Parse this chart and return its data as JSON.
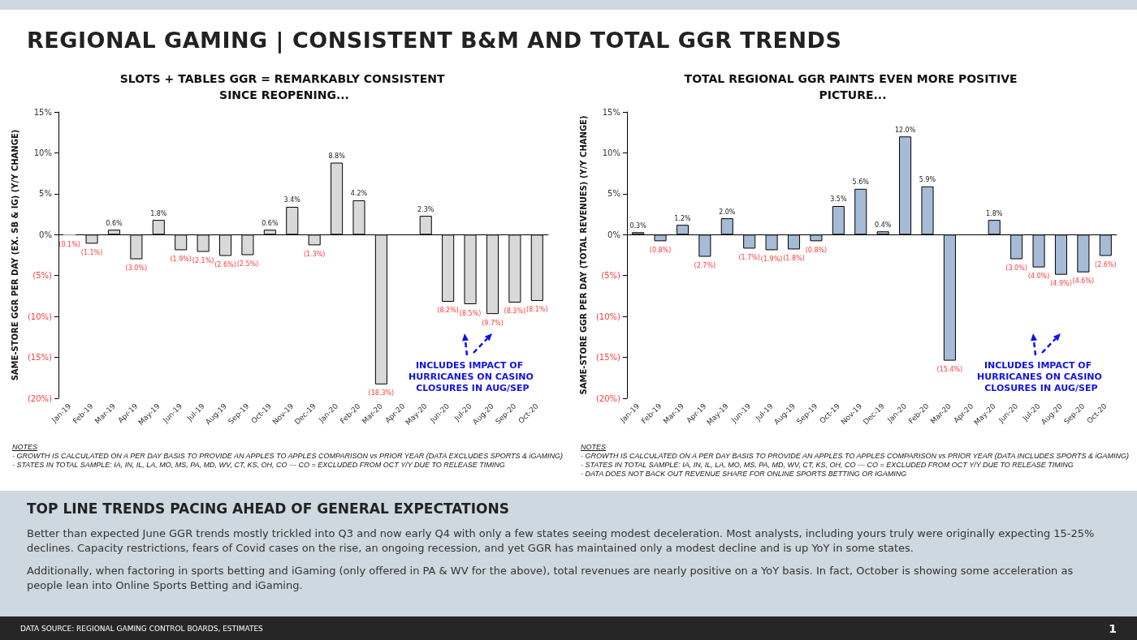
{
  "chart_data": [
    {
      "type": "other",
      "title": "REGIONAL GAMING | CONSISTENT B&M AND TOTAL GGR TRENDS"
    },
    {
      "type": "bar",
      "title": "SLOTS + TABLES GGR = REMARKABLY CONSISTENT SINCE REOPENING...",
      "ylabel": "SAME-STORE GGR PER DAY (EX. SB & IG) (Y/Y CHANGE)",
      "categories": [
        "Jan-19",
        "Feb-19",
        "Mar-19",
        "Apr-19",
        "May-19",
        "Jun-19",
        "Jul-19",
        "Aug-19",
        "Sep-19",
        "Oct-19",
        "Nov-19",
        "Dec-19",
        "Jan-20",
        "Feb-20",
        "Mar-20",
        "Apr-20",
        "May-20",
        "Jun-20",
        "Jul-20",
        "Aug-20",
        "Sep-20",
        "Oct-20"
      ],
      "values": [
        -0.1,
        -1.1,
        0.6,
        -3.0,
        1.8,
        -1.9,
        -2.1,
        -2.6,
        -2.5,
        0.6,
        3.4,
        -1.3,
        8.8,
        4.2,
        -18.3,
        null,
        2.3,
        -8.2,
        -8.5,
        -9.7,
        -8.3,
        -8.1
      ],
      "value_labels": [
        "(0.1%)",
        "(1.1%)",
        "0.6%",
        "(3.0%)",
        "1.8%",
        "(1.9%)",
        "(2.1%)",
        "(2.6%)",
        "(2.5%)",
        "0.6%",
        "3.4%",
        "(1.3%)",
        "8.8%",
        "4.2%",
        "(18.3%)",
        null,
        "2.3%",
        "(8.2%)",
        "(8.5%)",
        "(9.7%)",
        "(8.3%)",
        "(8.1%)"
      ],
      "color": "#d9d9d9",
      "ylim": [
        -20,
        15
      ],
      "yticks": [
        {
          "value": -20,
          "label": "(20%)"
        },
        {
          "value": -15,
          "label": "(15%)"
        },
        {
          "value": -10,
          "label": "(10%)"
        },
        {
          "value": -5,
          "label": "(5%)"
        },
        {
          "value": 0,
          "label": "0%"
        },
        {
          "value": 5,
          "label": "5%"
        },
        {
          "value": 10,
          "label": "10%"
        },
        {
          "value": 15,
          "label": "15%"
        }
      ],
      "annotations": [
        "NOTES",
        "- GROWTH IS CALCULATED ON A PER DAY BASIS TO PROVIDE AN APPLES TO APPLES COMPARISON vs PRIOR YEAR (DATA EXCLUDES SPORTS & iGAMING)",
        "- STATES IN TOTAL SAMPLE: IA, IN, IL, LA, MO, MS, PA, MD, WV, CT, KS, OH, CO --- CO = EXCLUDED FROM OCT Y/Y DUE TO RELEASE TIMING",
        "INCLUDES IMPACT OF HURRICANES ON CASINO CLOSURES IN AUG/SEP"
      ]
    },
    {
      "type": "bar",
      "title": "TOTAL REGIONAL GGR PAINTS EVEN MORE POSITIVE PICTURE...",
      "ylabel": "SAME-STORE GGR PER DAY (TOTAL REVENUES) (Y/Y CHANGE)",
      "categories": [
        "Jan-19",
        "Feb-19",
        "Mar-19",
        "Apr-19",
        "May-19",
        "Jun-19",
        "Jul-19",
        "Aug-19",
        "Sep-19",
        "Oct-19",
        "Nov-19",
        "Dec-19",
        "Jan-20",
        "Feb-20",
        "Mar-20",
        "Apr-20",
        "May-20",
        "Jun-20",
        "Jul-20",
        "Aug-20",
        "Sep-20",
        "Oct-20"
      ],
      "values": [
        0.3,
        -0.8,
        1.2,
        -2.7,
        2.0,
        -1.7,
        -1.9,
        -1.8,
        -0.8,
        3.5,
        5.6,
        0.4,
        12.0,
        5.9,
        -15.4,
        null,
        1.8,
        -3.0,
        -4.0,
        -4.9,
        -4.6,
        -2.6
      ],
      "value_labels": [
        "0.3%",
        "(0.8%)",
        "1.2%",
        "(2.7%)",
        "2.0%",
        "(1.7%)",
        "(1.9%)",
        "(1.8%)",
        "(0.8%)",
        "3.5%",
        "5.6%",
        "0.4%",
        "12.0%",
        "5.9%",
        "(15.4%)",
        null,
        "1.8%",
        "(3.0%)",
        "(4.0%)",
        "(4.9%)",
        "(4.6%)",
        "(2.6%)"
      ],
      "color": "#a6bbd6",
      "ylim": [
        -20,
        15
      ],
      "yticks": [
        {
          "value": -20,
          "label": "(20%)"
        },
        {
          "value": -15,
          "label": "(15%)"
        },
        {
          "value": -10,
          "label": "(10%)"
        },
        {
          "value": -5,
          "label": "(5%)"
        },
        {
          "value": 0,
          "label": "0%"
        },
        {
          "value": 5,
          "label": "5%"
        },
        {
          "value": 10,
          "label": "10%"
        },
        {
          "value": 15,
          "label": "15%"
        }
      ],
      "annotations": [
        "NOTES",
        "- GROWTH IS CALCULATED ON A PER DAY BASIS TO PROVIDE AN APPLES TO APPLES COMPARISON vs PRIOR YEAR (DATA INCLUDES SPORTS & iGAMING)",
        "- STATES IN TOTAL SAMPLE: IA, IN, IL, LA, MO, MS, PA, MD, WV, CT, KS, OH, CO --- CO = EXCLUDED FROM OCT Y/Y DUE TO RELEASE TIMING",
        "- DATA DOES NOT BACK OUT REVENUE SHARE FOR ONLINE SPORTS BETTING OR IGAMING",
        "INCLUDES IMPACT OF HURRICANES ON CASINO CLOSURES IN AUG/SEP"
      ]
    },
    {
      "type": "other",
      "title": "TOP LINE TRENDS PACING AHEAD OF GENERAL EXPECTATIONS",
      "annotations": [
        "Better than expected June GGR trends mostly trickled into Q3 and now early Q4 with only a few states seeing modest deceleration. Most analysts, including yours truly were originally expecting 15-25% declines. Capacity restrictions, fears of Covid cases on the rise, an ongoing recession, and yet GGR has maintained only a modest decline and is up YoY in some states.",
        "Additionally, when factoring in sports betting and iGaming (only offered in PA & WV for the above), total revenues are nearly positive on a YoY basis. In fact, October is showing some acceleration as people lean into Online Sports Betting and iGaming.",
        "DATA SOURCE: REGIONAL GAMING CONTROL BOARDS, ESTIMATES",
        "1"
      ]
    }
  ]
}
